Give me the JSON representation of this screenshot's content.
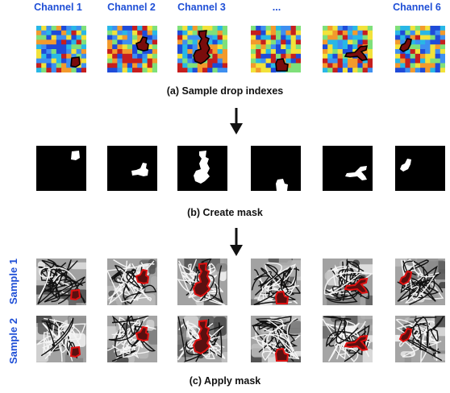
{
  "channel_labels": [
    "Channel 1",
    "Channel 2",
    "Channel 3",
    "...",
    "Channel 6"
  ],
  "captions": {
    "a": "(a)   Sample drop indexes",
    "b": "(b)   Create mask",
    "c": "(c)   Apply mask"
  },
  "row_labels": [
    "Sample 1",
    "Sample 2"
  ],
  "colors": {
    "label_blue": "#1f4fd6",
    "mask_outline": "#e01010",
    "heatmap": [
      "#1f4bd9",
      "#29b7e6",
      "#7fe07a",
      "#f2e23a",
      "#f39a2c",
      "#c61e1e",
      "#3e8ff0"
    ]
  },
  "icons": [
    "down-arrow-icon",
    "down-arrow-icon"
  ]
}
